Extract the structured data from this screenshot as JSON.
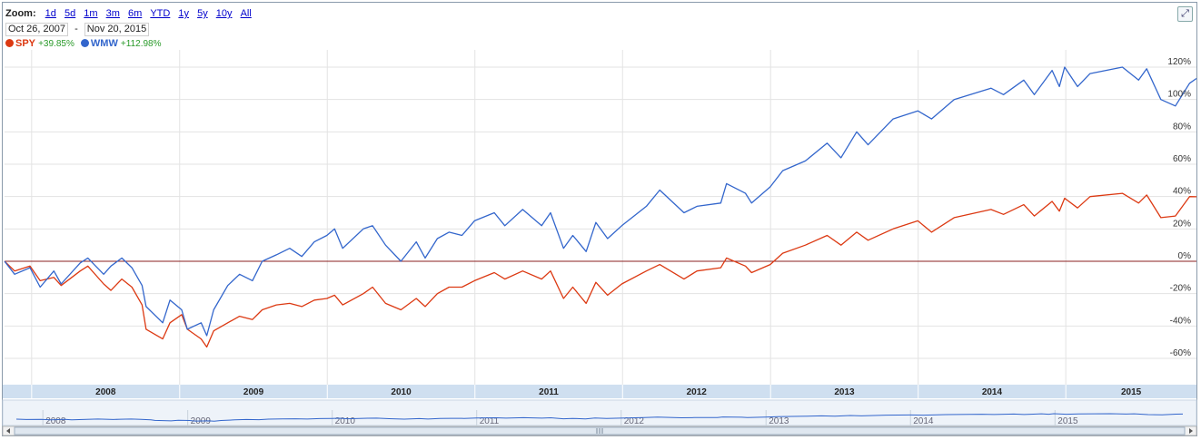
{
  "zoom": {
    "label": "Zoom:",
    "options": [
      "1d",
      "5d",
      "1m",
      "3m",
      "6m",
      "YTD",
      "1y",
      "5y",
      "10y",
      "All"
    ]
  },
  "range": {
    "start": "Oct 26, 2007",
    "separator": "-",
    "end": "Nov 20, 2015"
  },
  "colors": {
    "spy": "#dc3912",
    "wmw": "#3366cc",
    "zero_line": "#8b2020",
    "grid": "#e3e3e3",
    "year_band": "#cfdff0"
  },
  "icons": {
    "maximize": "maximize-icon"
  },
  "chart_data": {
    "type": "line",
    "y_unit": "%",
    "ylim": [
      -70,
      125
    ],
    "y_ticks": [
      120,
      100,
      80,
      60,
      40,
      20,
      0,
      -20,
      -40,
      -60
    ],
    "y_tick_labels": [
      "120%",
      "100%",
      "80%",
      "60%",
      "40%",
      "20%",
      "0%",
      "-20%",
      "-40%",
      "-60%"
    ],
    "x_range": [
      "2007-10-26",
      "2015-11-20"
    ],
    "x_tick_labels": [
      "2008",
      "2009",
      "2010",
      "2011",
      "2012",
      "2013",
      "2014",
      "2015"
    ],
    "grid": true,
    "legend_position": "top-left",
    "series": [
      {
        "name": "SPY",
        "change_label": "+39.85%",
        "points": [
          [
            "2007-10-26",
            0
          ],
          [
            "2007-11-20",
            -6
          ],
          [
            "2007-12-28",
            -3
          ],
          [
            "2008-01-22",
            -12
          ],
          [
            "2008-02-25",
            -10
          ],
          [
            "2008-03-14",
            -15
          ],
          [
            "2008-04-30",
            -6
          ],
          [
            "2008-05-19",
            -3
          ],
          [
            "2008-06-27",
            -14
          ],
          [
            "2008-07-15",
            -18
          ],
          [
            "2008-08-11",
            -11
          ],
          [
            "2008-09-05",
            -16
          ],
          [
            "2008-09-30",
            -27
          ],
          [
            "2008-10-10",
            -42
          ],
          [
            "2008-11-20",
            -48
          ],
          [
            "2008-12-08",
            -38
          ],
          [
            "2009-01-06",
            -33
          ],
          [
            "2009-01-20",
            -42
          ],
          [
            "2009-02-23",
            -48
          ],
          [
            "2009-03-09",
            -53
          ],
          [
            "2009-03-26",
            -43
          ],
          [
            "2009-04-30",
            -38
          ],
          [
            "2009-05-29",
            -34
          ],
          [
            "2009-06-30",
            -36
          ],
          [
            "2009-07-24",
            -30
          ],
          [
            "2009-08-28",
            -27
          ],
          [
            "2009-09-30",
            -26
          ],
          [
            "2009-10-30",
            -28
          ],
          [
            "2009-11-30",
            -24
          ],
          [
            "2009-12-31",
            -23
          ],
          [
            "2010-01-19",
            -21
          ],
          [
            "2010-02-08",
            -27
          ],
          [
            "2010-03-31",
            -20
          ],
          [
            "2010-04-23",
            -16
          ],
          [
            "2010-05-25",
            -26
          ],
          [
            "2010-07-02",
            -30
          ],
          [
            "2010-08-09",
            -23
          ],
          [
            "2010-08-31",
            -28
          ],
          [
            "2010-09-30",
            -20
          ],
          [
            "2010-10-29",
            -16
          ],
          [
            "2010-11-30",
            -16
          ],
          [
            "2010-12-31",
            -12
          ],
          [
            "2011-02-18",
            -7
          ],
          [
            "2011-03-16",
            -11
          ],
          [
            "2011-04-29",
            -6
          ],
          [
            "2011-06-15",
            -11
          ],
          [
            "2011-07-07",
            -6
          ],
          [
            "2011-08-08",
            -23
          ],
          [
            "2011-08-31",
            -16
          ],
          [
            "2011-10-03",
            -26
          ],
          [
            "2011-10-27",
            -13
          ],
          [
            "2011-11-25",
            -21
          ],
          [
            "2011-12-30",
            -14
          ],
          [
            "2012-02-29",
            -6
          ],
          [
            "2012-04-02",
            -2
          ],
          [
            "2012-06-01",
            -11
          ],
          [
            "2012-07-03",
            -6
          ],
          [
            "2012-08-31",
            -4
          ],
          [
            "2012-09-14",
            2
          ],
          [
            "2012-10-31",
            -3
          ],
          [
            "2012-11-15",
            -7
          ],
          [
            "2012-12-31",
            -2
          ],
          [
            "2013-01-31",
            5
          ],
          [
            "2013-03-28",
            10
          ],
          [
            "2013-05-21",
            16
          ],
          [
            "2013-06-24",
            10
          ],
          [
            "2013-08-02",
            18
          ],
          [
            "2013-08-30",
            13
          ],
          [
            "2013-10-31",
            20
          ],
          [
            "2013-12-31",
            25
          ],
          [
            "2014-02-03",
            18
          ],
          [
            "2014-03-31",
            27
          ],
          [
            "2014-06-30",
            32
          ],
          [
            "2014-07-31",
            29
          ],
          [
            "2014-09-19",
            35
          ],
          [
            "2014-10-15",
            28
          ],
          [
            "2014-11-28",
            37
          ],
          [
            "2014-12-16",
            31
          ],
          [
            "2014-12-29",
            39
          ],
          [
            "2015-01-30",
            33
          ],
          [
            "2015-03-02",
            40
          ],
          [
            "2015-05-21",
            42
          ],
          [
            "2015-06-30",
            36
          ],
          [
            "2015-07-20",
            41
          ],
          [
            "2015-08-24",
            27
          ],
          [
            "2015-09-29",
            28
          ],
          [
            "2015-11-03",
            40
          ],
          [
            "2015-11-20",
            39.85
          ]
        ]
      },
      {
        "name": "WMW",
        "change_label": "+112.98%",
        "points": [
          [
            "2007-10-26",
            0
          ],
          [
            "2007-11-20",
            -8
          ],
          [
            "2007-12-28",
            -4
          ],
          [
            "2008-01-22",
            -16
          ],
          [
            "2008-02-25",
            -6
          ],
          [
            "2008-03-14",
            -14
          ],
          [
            "2008-04-30",
            -1
          ],
          [
            "2008-05-19",
            2
          ],
          [
            "2008-06-27",
            -8
          ],
          [
            "2008-07-15",
            -3
          ],
          [
            "2008-08-11",
            2
          ],
          [
            "2008-09-05",
            -4
          ],
          [
            "2008-09-30",
            -15
          ],
          [
            "2008-10-10",
            -28
          ],
          [
            "2008-11-20",
            -38
          ],
          [
            "2008-12-08",
            -24
          ],
          [
            "2009-01-06",
            -30
          ],
          [
            "2009-01-20",
            -42
          ],
          [
            "2009-02-23",
            -38
          ],
          [
            "2009-03-09",
            -46
          ],
          [
            "2009-03-26",
            -30
          ],
          [
            "2009-04-30",
            -15
          ],
          [
            "2009-05-29",
            -8
          ],
          [
            "2009-06-30",
            -12
          ],
          [
            "2009-07-24",
            0
          ],
          [
            "2009-08-28",
            4
          ],
          [
            "2009-09-30",
            8
          ],
          [
            "2009-10-30",
            3
          ],
          [
            "2009-11-30",
            12
          ],
          [
            "2009-12-31",
            16
          ],
          [
            "2010-01-19",
            20
          ],
          [
            "2010-02-08",
            8
          ],
          [
            "2010-03-31",
            20
          ],
          [
            "2010-04-23",
            22
          ],
          [
            "2010-05-25",
            10
          ],
          [
            "2010-07-02",
            0
          ],
          [
            "2010-08-09",
            12
          ],
          [
            "2010-08-31",
            2
          ],
          [
            "2010-09-30",
            14
          ],
          [
            "2010-10-29",
            18
          ],
          [
            "2010-11-30",
            16
          ],
          [
            "2010-12-31",
            25
          ],
          [
            "2011-02-18",
            30
          ],
          [
            "2011-03-16",
            22
          ],
          [
            "2011-04-29",
            32
          ],
          [
            "2011-06-15",
            22
          ],
          [
            "2011-07-07",
            30
          ],
          [
            "2011-08-08",
            8
          ],
          [
            "2011-08-31",
            16
          ],
          [
            "2011-10-03",
            6
          ],
          [
            "2011-10-27",
            24
          ],
          [
            "2011-11-25",
            14
          ],
          [
            "2011-12-30",
            22
          ],
          [
            "2012-02-29",
            34
          ],
          [
            "2012-04-02",
            44
          ],
          [
            "2012-06-01",
            30
          ],
          [
            "2012-07-03",
            34
          ],
          [
            "2012-08-31",
            36
          ],
          [
            "2012-09-14",
            48
          ],
          [
            "2012-10-31",
            42
          ],
          [
            "2012-11-15",
            36
          ],
          [
            "2012-12-31",
            46
          ],
          [
            "2013-01-31",
            56
          ],
          [
            "2013-03-28",
            62
          ],
          [
            "2013-05-21",
            73
          ],
          [
            "2013-06-24",
            64
          ],
          [
            "2013-08-02",
            80
          ],
          [
            "2013-08-30",
            72
          ],
          [
            "2013-10-31",
            88
          ],
          [
            "2013-12-31",
            93
          ],
          [
            "2014-02-03",
            88
          ],
          [
            "2014-03-31",
            100
          ],
          [
            "2014-06-30",
            107
          ],
          [
            "2014-07-31",
            103
          ],
          [
            "2014-09-19",
            112
          ],
          [
            "2014-10-15",
            103
          ],
          [
            "2014-11-28",
            118
          ],
          [
            "2014-12-16",
            108
          ],
          [
            "2014-12-29",
            120
          ],
          [
            "2015-01-30",
            108
          ],
          [
            "2015-03-02",
            116
          ],
          [
            "2015-05-21",
            120
          ],
          [
            "2015-06-30",
            112
          ],
          [
            "2015-07-20",
            119
          ],
          [
            "2015-08-24",
            100
          ],
          [
            "2015-09-29",
            96
          ],
          [
            "2015-11-03",
            110
          ],
          [
            "2015-11-20",
            112.98
          ]
        ]
      }
    ]
  }
}
